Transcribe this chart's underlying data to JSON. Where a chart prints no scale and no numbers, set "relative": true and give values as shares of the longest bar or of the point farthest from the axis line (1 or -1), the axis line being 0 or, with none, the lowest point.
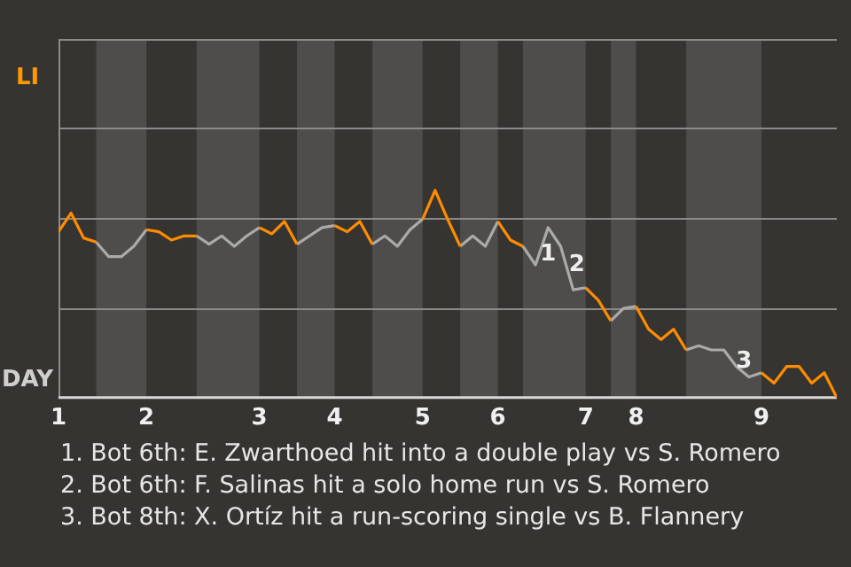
{
  "chart_data": {
    "type": "line",
    "relative": true,
    "ylabel": "LI",
    "xlabel": "DAY",
    "legend": false,
    "marker": "none",
    "line_style": "solid",
    "categories": [
      "1",
      null,
      null,
      null,
      null,
      null,
      null,
      "2",
      null,
      null,
      null,
      null,
      null,
      null,
      null,
      null,
      "3",
      null,
      null,
      null,
      null,
      null,
      "4",
      null,
      null,
      null,
      null,
      null,
      null,
      "5",
      null,
      null,
      null,
      null,
      null,
      "6",
      null,
      null,
      null,
      null,
      null,
      null,
      "7",
      null,
      null,
      null,
      "8",
      null,
      null,
      null,
      null,
      null,
      null,
      null,
      null,
      null,
      "9",
      null,
      null,
      null,
      null,
      null,
      null
    ],
    "series": [
      {
        "color": "#ff8c00",
        "values": [
          0.8,
          0.89,
          0.77,
          0.75,
          null,
          null,
          null,
          0.81,
          0.8,
          0.76,
          0.78,
          0.78,
          null,
          null,
          null,
          null,
          0.82,
          0.79,
          0.85,
          0.74,
          null,
          null,
          0.83,
          0.8,
          0.85,
          0.74,
          null,
          null,
          null,
          0.86,
          1,
          0.86,
          0.73,
          null,
          null,
          0.85,
          0.76,
          0.73,
          null,
          null,
          null,
          null,
          0.53,
          0.47,
          0.37,
          null,
          0.44,
          0.33,
          0.28,
          0.33,
          0.23,
          null,
          null,
          null,
          null,
          null,
          0.12,
          0.07,
          0.15,
          0.15,
          0.07,
          0.12,
          0
        ]
      },
      {
        "color": "#aaaaaa",
        "values": [
          null,
          null,
          null,
          0.75,
          0.68,
          0.68,
          0.73,
          0.81,
          null,
          null,
          null,
          0.78,
          0.74,
          0.78,
          0.73,
          0.78,
          0.82,
          null,
          null,
          0.74,
          0.78,
          0.82,
          0.83,
          null,
          null,
          0.74,
          0.78,
          0.73,
          0.81,
          0.86,
          null,
          null,
          0.73,
          0.78,
          0.73,
          0.85,
          null,
          0.73,
          0.64,
          0.82,
          0.73,
          0.52,
          0.53,
          null,
          0.37,
          0.43,
          0.44,
          null,
          null,
          null,
          0.23,
          0.25,
          0.23,
          0.23,
          0.15,
          0.1,
          0.12,
          null,
          null,
          null,
          null,
          null,
          null
        ]
      }
    ],
    "ref_lines": [
      {
        "axis": "y",
        "value": 0.43,
        "color": "#8c8b89"
      },
      {
        "axis": "y",
        "value": 0.87,
        "color": "#8c8b89"
      },
      {
        "axis": "y",
        "value": 1.3,
        "color": "#8c8b89"
      },
      {
        "axis": "y",
        "value": 1.73,
        "color": "#8c8b89"
      }
    ],
    "annotations": [
      "1",
      "2",
      "3",
      "1. Bot 6th: E. Zwarthoed hit into a double play vs S. Romero",
      "2. Bot 6th: F. Salinas hit a solo home run vs S. Romero",
      "3. Bot 8th: X. Ortíz hit a run-scoring single vs B. Flannery"
    ]
  }
}
